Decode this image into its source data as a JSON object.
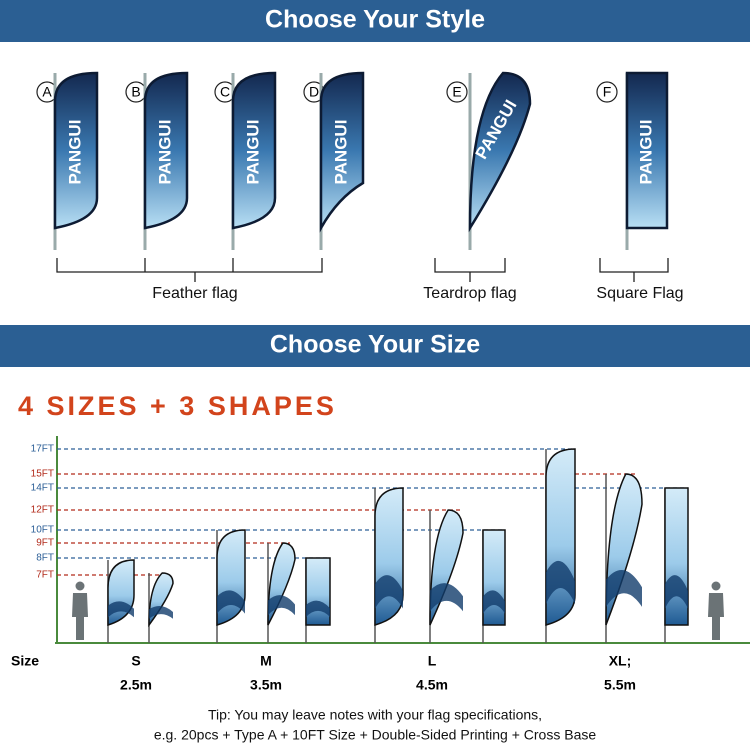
{
  "sections": [
    {
      "title": "Choose Your Style"
    },
    {
      "title": "Choose Your Size"
    }
  ],
  "brand": "PANGUI",
  "styles": [
    "A",
    "B",
    "C",
    "D",
    "E",
    "F"
  ],
  "groups": [
    "Feather flag",
    "Teardrop flag",
    "Square Flag"
  ],
  "headline": "4 SIZES + 3 SHAPES",
  "height_levels": [
    "17FT",
    "15FT",
    "14FT",
    "12FT",
    "10FT",
    "9FT",
    "8FT",
    "7FT"
  ],
  "size_label": "Size",
  "sizes": [
    {
      "name": "S",
      "length": "2.5m"
    },
    {
      "name": "M",
      "length": "3.5m"
    },
    {
      "name": "L",
      "length": "4.5m"
    },
    {
      "name": "XL;",
      "length": "5.5m"
    }
  ],
  "tip": [
    "Tip: You may leave notes with your flag specifications,",
    "e.g. 20pcs + Type A + 10FT Size + Double-Sided Printing + Cross Base"
  ]
}
